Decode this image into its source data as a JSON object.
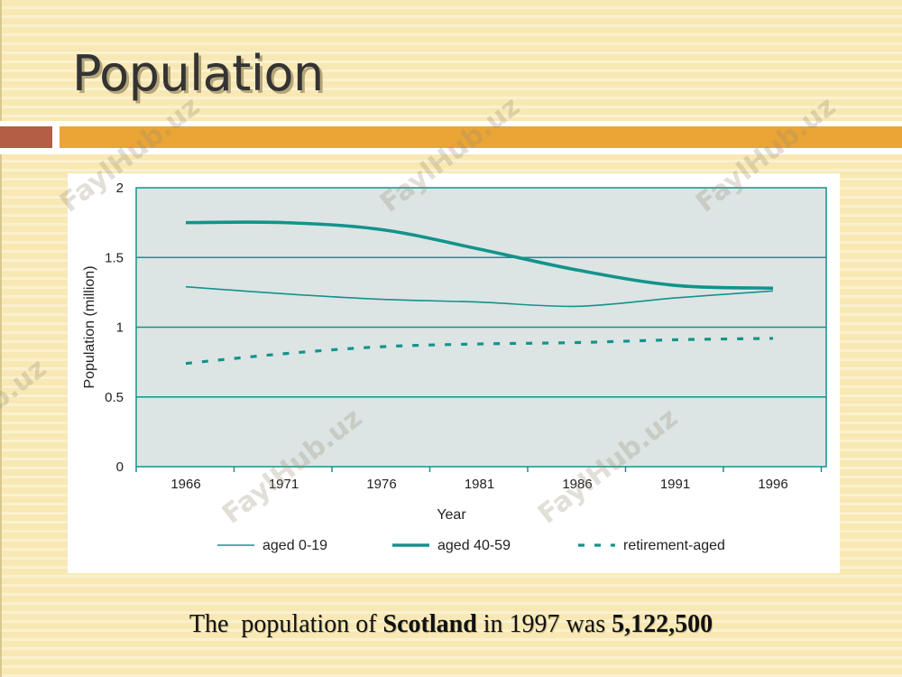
{
  "slide": {
    "title": "Population",
    "caption": {
      "p1": "The  population of ",
      "bold1": "Scotland",
      "p2": " in 1997 was ",
      "bold2": "5,122,500"
    },
    "watermark": "FaylHub.uz"
  },
  "colors": {
    "background": "#f8e8b4",
    "band_orange": "#eba535",
    "band_brown": "#b35e45",
    "plot_bg": "#dce5e4",
    "series": "#13938c"
  },
  "chart_data": {
    "type": "line",
    "xlabel": "Year",
    "ylabel": "Population (million)",
    "x": [
      1966,
      1971,
      1976,
      1981,
      1986,
      1991,
      1996
    ],
    "x_tick_labels": [
      "1966",
      "1971",
      "1976",
      "1981",
      "1986",
      "1991",
      "1996"
    ],
    "y_ticks": [
      "0",
      "0.5",
      "1",
      "1.5",
      "2"
    ],
    "ylim": [
      0,
      2
    ],
    "grid": "horizontal",
    "legend_position": "bottom",
    "series": [
      {
        "name": "aged 0-19",
        "style": "thin",
        "values": [
          1.29,
          1.24,
          1.2,
          1.18,
          1.15,
          1.21,
          1.26
        ]
      },
      {
        "name": "aged 40-59",
        "style": "thick",
        "values": [
          1.75,
          1.75,
          1.7,
          1.56,
          1.41,
          1.3,
          1.28
        ]
      },
      {
        "name": "retirement-aged",
        "style": "dashed",
        "values": [
          0.74,
          0.81,
          0.86,
          0.88,
          0.89,
          0.91,
          0.92
        ]
      }
    ]
  }
}
